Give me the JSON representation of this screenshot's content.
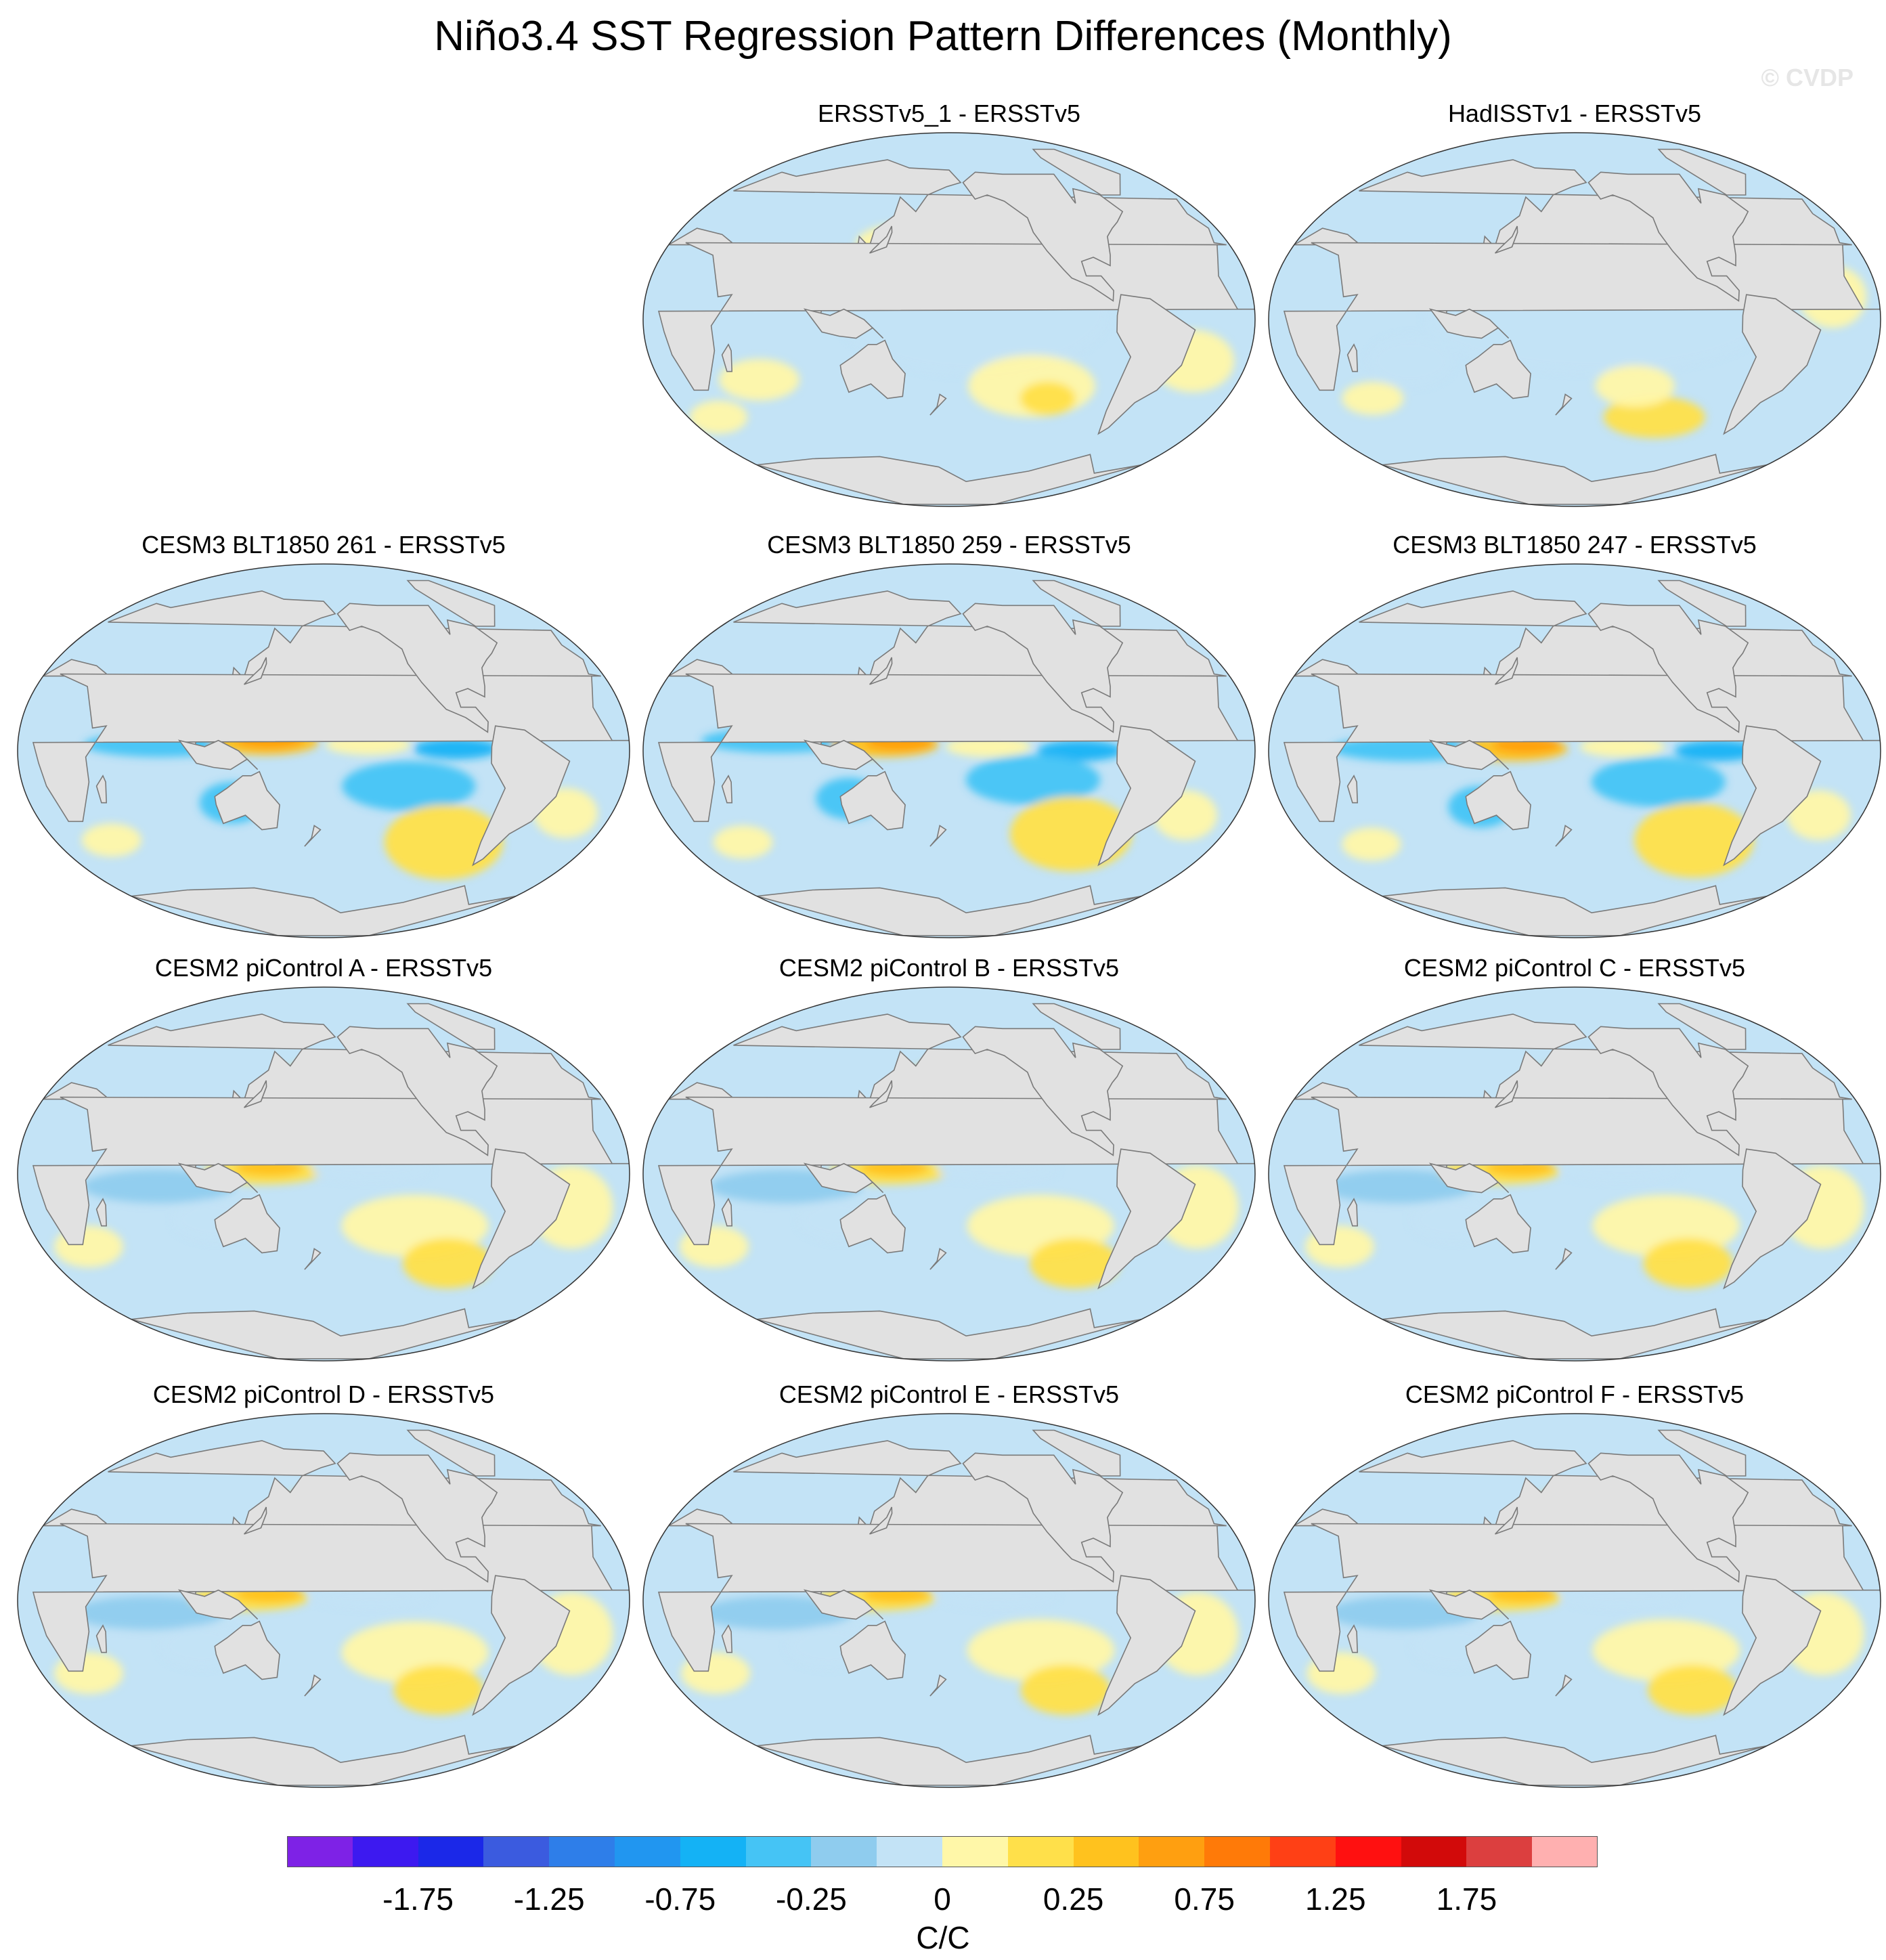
{
  "title": "Niño3.4 SST Regression Pattern Differences (Monthly)",
  "watermark": "© CVDP",
  "colors": {
    "land": "#e1e1e1",
    "coast": "#7a7a7a",
    "levels": [
      "#7e22e6",
      "#3d19f0",
      "#1b28e8",
      "#3b5bdf",
      "#2e7ee9",
      "#2196f0",
      "#14b2f5",
      "#45c4f5",
      "#8fccee",
      "#c3e3f6",
      "#fff7a8",
      "#ffe04a",
      "#ffc21e",
      "#ff9f10",
      "#ff7a08",
      "#ff4015",
      "#ff1010",
      "#d20a0a",
      "#dc3f3f",
      "#ffb0b0"
    ]
  },
  "panels": [
    {
      "id": "ersstv5-1",
      "label": "ERSSTv5_1 - ERSSTv5",
      "row": 0,
      "col": 1,
      "style": "obs1"
    },
    {
      "id": "hadisstv1",
      "label": "HadISSTv1 - ERSSTv5",
      "row": 0,
      "col": 2,
      "style": "obs2"
    },
    {
      "id": "blt1850-261",
      "label": "CESM3 BLT1850 261 - ERSSTv5",
      "row": 1,
      "col": 0,
      "style": "cesm3"
    },
    {
      "id": "blt1850-259",
      "label": "CESM3 BLT1850 259 - ERSSTv5",
      "row": 1,
      "col": 1,
      "style": "cesm3"
    },
    {
      "id": "blt1850-247",
      "label": "CESM3 BLT1850 247 - ERSSTv5",
      "row": 1,
      "col": 2,
      "style": "cesm3"
    },
    {
      "id": "picontrol-a",
      "label": "CESM2 piControl A - ERSSTv5",
      "row": 2,
      "col": 0,
      "style": "cesm2"
    },
    {
      "id": "picontrol-b",
      "label": "CESM2 piControl B - ERSSTv5",
      "row": 2,
      "col": 1,
      "style": "cesm2"
    },
    {
      "id": "picontrol-c",
      "label": "CESM2 piControl C - ERSSTv5",
      "row": 2,
      "col": 2,
      "style": "cesm2"
    },
    {
      "id": "picontrol-d",
      "label": "CESM2 piControl D - ERSSTv5",
      "row": 3,
      "col": 0,
      "style": "cesm2"
    },
    {
      "id": "picontrol-e",
      "label": "CESM2 piControl E - ERSSTv5",
      "row": 3,
      "col": 1,
      "style": "cesm2"
    },
    {
      "id": "picontrol-f",
      "label": "CESM2 piControl F - ERSSTv5",
      "row": 3,
      "col": 2,
      "style": "cesm2"
    }
  ],
  "colorbar": {
    "labels": [
      "-1.75",
      "-1.25",
      "-0.75",
      "-0.25",
      "0",
      "0.25",
      "0.75",
      "1.25",
      "1.75"
    ],
    "label_positions": [
      2,
      4,
      6,
      8,
      10,
      12,
      14,
      16,
      18
    ],
    "units": "C/C"
  }
}
